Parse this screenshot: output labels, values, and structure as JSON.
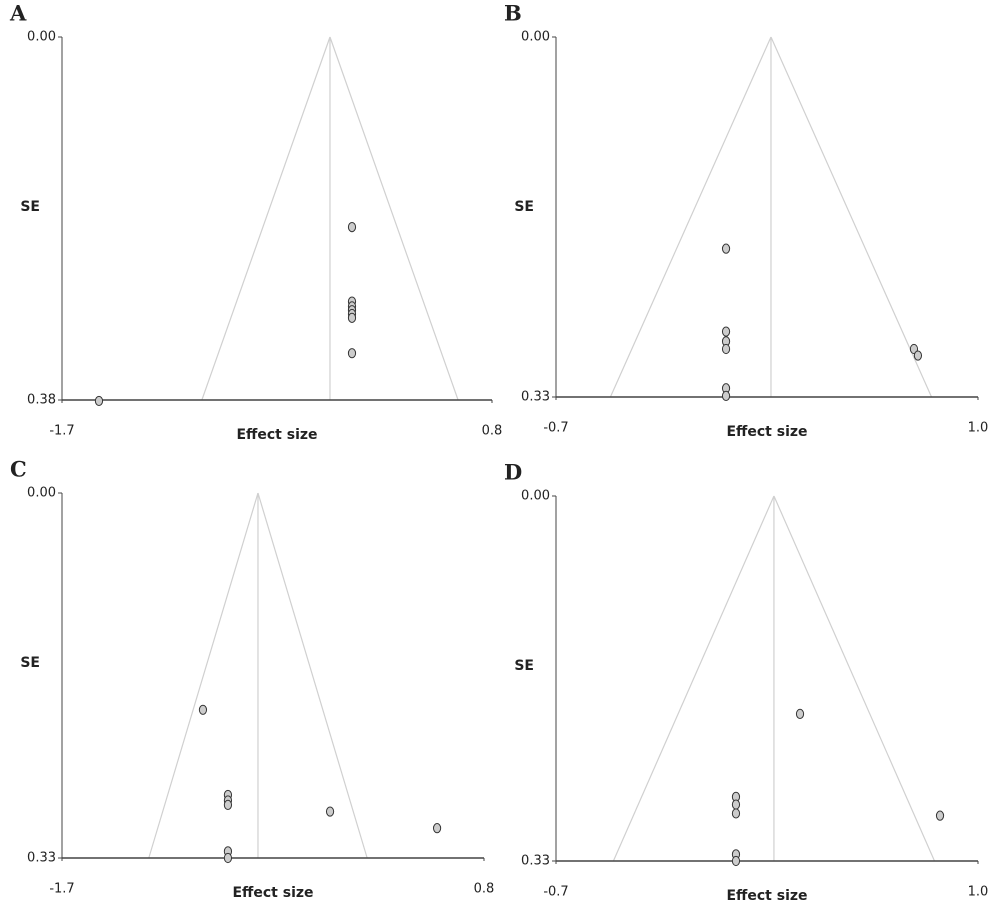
{
  "chart_data": [
    {
      "type": "funnel",
      "panel": "A",
      "xlabel": "Effect size",
      "ylabel": "SE",
      "xlim": [
        -1.7,
        0.8
      ],
      "xticks": [
        -1.7,
        0.8
      ],
      "ylim": [
        0,
        0.38
      ],
      "yticks": [
        {
          "value": 0,
          "label": "0.00"
        },
        0.38
      ],
      "y_inverted": true,
      "center": -0.142,
      "marker_color": "#cccccc",
      "x": [
        -0.014,
        -0.014,
        -0.014,
        -0.014,
        -0.014,
        -0.014,
        -0.014,
        -1.485
      ],
      "values": [
        0.199,
        0.277,
        0.282,
        0.286,
        0.29,
        0.294,
        0.331,
        0.381
      ]
    },
    {
      "type": "funnel",
      "panel": "B",
      "xlabel": "Effect size",
      "ylabel": "SE",
      "xlim": [
        -0.7,
        1.0
      ],
      "xticks": [
        -0.7,
        {
          "value": 1.0,
          "label": "1.0"
        }
      ],
      "ylim": [
        0,
        0.33
      ],
      "yticks": [
        {
          "value": 0,
          "label": "0.00"
        },
        0.33
      ],
      "y_inverted": true,
      "center": 0.166,
      "marker_color": "#cccccc",
      "x": [
        -0.015,
        -0.015,
        -0.015,
        -0.015,
        0.742,
        0.758,
        -0.015,
        -0.015
      ],
      "values": [
        0.194,
        0.27,
        0.279,
        0.286,
        0.286,
        0.292,
        0.322,
        0.329
      ]
    },
    {
      "type": "funnel",
      "panel": "C",
      "xlabel": "Effect size",
      "ylabel": "SE",
      "xlim": [
        -1.7,
        0.8
      ],
      "xticks": [
        -1.7,
        0.8
      ],
      "ylim": [
        0,
        0.33
      ],
      "yticks": [
        {
          "value": 0,
          "label": "0.00"
        },
        0.33
      ],
      "y_inverted": true,
      "center": -0.539,
      "marker_color": "#cccccc",
      "x": [
        -0.865,
        -0.717,
        -0.717,
        -0.717,
        -0.112,
        0.522,
        -0.717,
        -0.717
      ],
      "values": [
        0.196,
        0.273,
        0.278,
        0.282,
        0.288,
        0.303,
        0.324,
        0.33
      ]
    },
    {
      "type": "funnel",
      "panel": "D",
      "xlabel": "Effect size",
      "ylabel": "SE",
      "xlim": [
        -0.7,
        1.0
      ],
      "xticks": [
        -0.7,
        {
          "value": 1.0,
          "label": "1.0"
        }
      ],
      "ylim": [
        0,
        0.33
      ],
      "yticks": [
        {
          "value": 0,
          "label": "0.00"
        },
        0.33
      ],
      "y_inverted": true,
      "center": 0.178,
      "marker_color": "#cccccc",
      "x": [
        0.283,
        0.025,
        0.025,
        0.025,
        0.847,
        0.025,
        0.025
      ],
      "values": [
        0.197,
        0.272,
        0.279,
        0.287,
        0.289,
        0.324,
        0.33
      ]
    }
  ]
}
